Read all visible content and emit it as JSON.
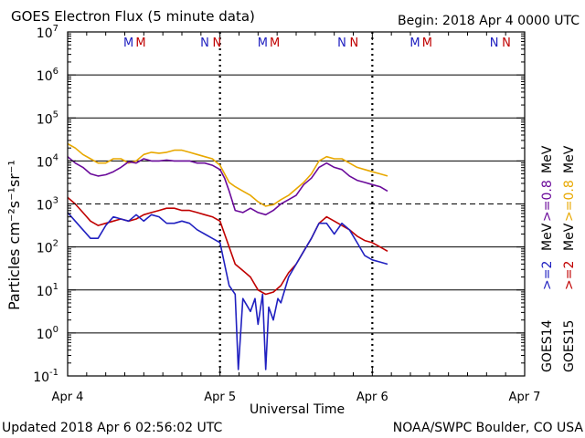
{
  "header": {
    "title": "GOES Electron Flux (5 minute data)",
    "begin": "Begin: 2018 Apr 4 0000 UTC"
  },
  "footer": {
    "updated": "Updated 2018 Apr  6 02:56:02 UTC",
    "credit": "NOAA/SWPC Boulder, CO USA"
  },
  "chart_data": {
    "type": "line",
    "title": "GOES Electron Flux (5 minute data)",
    "xlabel": "Universal Time",
    "ylabel": "Particles cm⁻²s⁻¹sr⁻¹",
    "x_unit": "days since 2018 Apr 4 0000 UTC",
    "xlim": [
      0,
      3
    ],
    "x_ticks": [
      {
        "value": 0,
        "label": "Apr 4"
      },
      {
        "value": 1,
        "label": "Apr 5"
      },
      {
        "value": 2,
        "label": "Apr 6"
      },
      {
        "value": 3,
        "label": "Apr 7"
      }
    ],
    "y_scale": "log",
    "ylim_exp": [
      -1,
      7
    ],
    "y_ticks": [
      {
        "exp": 7,
        "base": "10",
        "sup": "7"
      },
      {
        "exp": 6,
        "base": "10",
        "sup": "6"
      },
      {
        "exp": 5,
        "base": "10",
        "sup": "5"
      },
      {
        "exp": 4,
        "base": "10",
        "sup": "4"
      },
      {
        "exp": 3,
        "base": "10",
        "sup": "3"
      },
      {
        "exp": 2,
        "base": "10",
        "sup": "2"
      },
      {
        "exp": 1,
        "base": "10",
        "sup": "1"
      },
      {
        "exp": 0,
        "base": "10",
        "sup": "0"
      },
      {
        "exp": -1,
        "base": "10",
        "sup": "-1"
      }
    ],
    "threshold_exp": 3,
    "midnight_markers": [
      1,
      2
    ],
    "local_time_markers": [
      {
        "day": 0,
        "label": "M",
        "color": "#2020c0",
        "offset": 0.4
      },
      {
        "day": 0,
        "label": "M",
        "color": "#c00000",
        "offset": 0.48
      },
      {
        "day": 0,
        "label": "N",
        "color": "#2020c0",
        "offset": 0.9
      },
      {
        "day": 0,
        "label": "N",
        "color": "#c00000",
        "offset": 0.98
      },
      {
        "day": 1,
        "label": "M",
        "color": "#2020c0",
        "offset": 0.28
      },
      {
        "day": 1,
        "label": "M",
        "color": "#c00000",
        "offset": 0.36
      },
      {
        "day": 1,
        "label": "N",
        "color": "#2020c0",
        "offset": 0.8
      },
      {
        "day": 1,
        "label": "N",
        "color": "#c00000",
        "offset": 0.88
      },
      {
        "day": 2,
        "label": "M",
        "color": "#2020c0",
        "offset": 0.28
      },
      {
        "day": 2,
        "label": "M",
        "color": "#c00000",
        "offset": 0.36
      },
      {
        "day": 2,
        "label": "N",
        "color": "#2020c0",
        "offset": 0.8
      },
      {
        "day": 2,
        "label": "N",
        "color": "#c00000",
        "offset": 0.88
      }
    ],
    "right_labels": {
      "goes14": "GOES14",
      "goes15": "GOES15",
      "ge2_14": ">=2",
      "ge2_15": ">=2",
      "ge08_14": ">=0.8",
      "ge08_15": ">=0.8",
      "unit": "MeV",
      "color14_2": "#2020c0",
      "color15_2": "#c00000",
      "color14_08": "#6a0a9a",
      "color15_08": "#e8a800"
    },
    "series": [
      {
        "name": "GOES15 >=0.8 MeV",
        "color": "#e8a800",
        "points": [
          [
            0,
            4.4
          ],
          [
            0.05,
            4.3
          ],
          [
            0.1,
            4.15
          ],
          [
            0.15,
            4.05
          ],
          [
            0.2,
            3.95
          ],
          [
            0.25,
            3.95
          ],
          [
            0.3,
            4.05
          ],
          [
            0.35,
            4.05
          ],
          [
            0.4,
            3.95
          ],
          [
            0.45,
            4.0
          ],
          [
            0.5,
            4.15
          ],
          [
            0.55,
            4.2
          ],
          [
            0.6,
            4.18
          ],
          [
            0.65,
            4.2
          ],
          [
            0.7,
            4.25
          ],
          [
            0.75,
            4.25
          ],
          [
            0.8,
            4.2
          ],
          [
            0.85,
            4.15
          ],
          [
            0.9,
            4.1
          ],
          [
            0.95,
            4.05
          ],
          [
            1.0,
            3.9
          ],
          [
            1.03,
            3.7
          ],
          [
            1.06,
            3.5
          ],
          [
            1.1,
            3.4
          ],
          [
            1.15,
            3.3
          ],
          [
            1.2,
            3.2
          ],
          [
            1.25,
            3.05
          ],
          [
            1.3,
            2.95
          ],
          [
            1.35,
            2.98
          ],
          [
            1.4,
            3.1
          ],
          [
            1.45,
            3.2
          ],
          [
            1.5,
            3.35
          ],
          [
            1.55,
            3.5
          ],
          [
            1.6,
            3.7
          ],
          [
            1.65,
            4.0
          ],
          [
            1.7,
            4.1
          ],
          [
            1.75,
            4.05
          ],
          [
            1.8,
            4.05
          ],
          [
            1.85,
            3.95
          ],
          [
            1.9,
            3.85
          ],
          [
            1.95,
            3.8
          ],
          [
            2.0,
            3.75
          ],
          [
            2.05,
            3.7
          ],
          [
            2.1,
            3.65
          ]
        ]
      },
      {
        "name": "GOES14 >=0.8 MeV",
        "color": "#6a0a9a",
        "points": [
          [
            0,
            4.1
          ],
          [
            0.05,
            3.95
          ],
          [
            0.1,
            3.85
          ],
          [
            0.15,
            3.7
          ],
          [
            0.2,
            3.65
          ],
          [
            0.25,
            3.68
          ],
          [
            0.3,
            3.75
          ],
          [
            0.35,
            3.85
          ],
          [
            0.4,
            3.98
          ],
          [
            0.45,
            3.95
          ],
          [
            0.5,
            4.05
          ],
          [
            0.55,
            4.0
          ],
          [
            0.6,
            4.0
          ],
          [
            0.65,
            4.02
          ],
          [
            0.7,
            4.0
          ],
          [
            0.75,
            4.0
          ],
          [
            0.8,
            4.0
          ],
          [
            0.85,
            3.95
          ],
          [
            0.9,
            3.95
          ],
          [
            0.95,
            3.9
          ],
          [
            1.0,
            3.8
          ],
          [
            1.03,
            3.6
          ],
          [
            1.06,
            3.3
          ],
          [
            1.1,
            2.85
          ],
          [
            1.15,
            2.8
          ],
          [
            1.2,
            2.9
          ],
          [
            1.25,
            2.8
          ],
          [
            1.3,
            2.75
          ],
          [
            1.35,
            2.85
          ],
          [
            1.4,
            3.0
          ],
          [
            1.45,
            3.1
          ],
          [
            1.5,
            3.2
          ],
          [
            1.55,
            3.45
          ],
          [
            1.6,
            3.6
          ],
          [
            1.65,
            3.85
          ],
          [
            1.7,
            3.95
          ],
          [
            1.75,
            3.85
          ],
          [
            1.8,
            3.8
          ],
          [
            1.85,
            3.65
          ],
          [
            1.9,
            3.55
          ],
          [
            1.95,
            3.5
          ],
          [
            2.0,
            3.45
          ],
          [
            2.05,
            3.4
          ],
          [
            2.1,
            3.3
          ]
        ]
      },
      {
        "name": "GOES15 >=2 MeV",
        "color": "#c00000",
        "points": [
          [
            0,
            3.15
          ],
          [
            0.05,
            3.0
          ],
          [
            0.1,
            2.8
          ],
          [
            0.15,
            2.6
          ],
          [
            0.2,
            2.5
          ],
          [
            0.25,
            2.55
          ],
          [
            0.3,
            2.6
          ],
          [
            0.35,
            2.65
          ],
          [
            0.4,
            2.6
          ],
          [
            0.45,
            2.65
          ],
          [
            0.5,
            2.75
          ],
          [
            0.55,
            2.8
          ],
          [
            0.6,
            2.85
          ],
          [
            0.65,
            2.9
          ],
          [
            0.7,
            2.9
          ],
          [
            0.75,
            2.85
          ],
          [
            0.8,
            2.85
          ],
          [
            0.85,
            2.8
          ],
          [
            0.9,
            2.75
          ],
          [
            0.95,
            2.7
          ],
          [
            1.0,
            2.6
          ],
          [
            1.03,
            2.3
          ],
          [
            1.06,
            2.0
          ],
          [
            1.1,
            1.6
          ],
          [
            1.15,
            1.45
          ],
          [
            1.2,
            1.3
          ],
          [
            1.25,
            1.0
          ],
          [
            1.3,
            0.9
          ],
          [
            1.35,
            0.95
          ],
          [
            1.4,
            1.1
          ],
          [
            1.45,
            1.4
          ],
          [
            1.5,
            1.6
          ],
          [
            1.55,
            1.9
          ],
          [
            1.6,
            2.2
          ],
          [
            1.65,
            2.55
          ],
          [
            1.7,
            2.7
          ],
          [
            1.75,
            2.6
          ],
          [
            1.8,
            2.5
          ],
          [
            1.85,
            2.4
          ],
          [
            1.9,
            2.25
          ],
          [
            1.95,
            2.15
          ],
          [
            2.0,
            2.1
          ],
          [
            2.05,
            2.0
          ],
          [
            2.1,
            1.9
          ]
        ]
      },
      {
        "name": "GOES14 >=2 MeV",
        "color": "#2020c0",
        "points": [
          [
            0,
            2.8
          ],
          [
            0.05,
            2.6
          ],
          [
            0.1,
            2.4
          ],
          [
            0.15,
            2.2
          ],
          [
            0.2,
            2.2
          ],
          [
            0.25,
            2.5
          ],
          [
            0.3,
            2.7
          ],
          [
            0.35,
            2.65
          ],
          [
            0.4,
            2.6
          ],
          [
            0.45,
            2.75
          ],
          [
            0.5,
            2.6
          ],
          [
            0.55,
            2.75
          ],
          [
            0.6,
            2.7
          ],
          [
            0.65,
            2.55
          ],
          [
            0.7,
            2.55
          ],
          [
            0.75,
            2.6
          ],
          [
            0.8,
            2.55
          ],
          [
            0.85,
            2.4
          ],
          [
            0.9,
            2.3
          ],
          [
            0.95,
            2.2
          ],
          [
            1.0,
            2.1
          ],
          [
            1.03,
            1.6
          ],
          [
            1.06,
            1.1
          ],
          [
            1.1,
            0.9
          ],
          [
            1.12,
            -0.85
          ],
          [
            1.15,
            0.8
          ],
          [
            1.2,
            0.5
          ],
          [
            1.23,
            0.8
          ],
          [
            1.25,
            0.2
          ],
          [
            1.28,
            0.9
          ],
          [
            1.3,
            -0.85
          ],
          [
            1.32,
            0.6
          ],
          [
            1.35,
            0.3
          ],
          [
            1.38,
            0.8
          ],
          [
            1.4,
            0.7
          ],
          [
            1.45,
            1.3
          ],
          [
            1.5,
            1.6
          ],
          [
            1.55,
            1.9
          ],
          [
            1.6,
            2.2
          ],
          [
            1.65,
            2.55
          ],
          [
            1.7,
            2.55
          ],
          [
            1.75,
            2.3
          ],
          [
            1.8,
            2.55
          ],
          [
            1.85,
            2.4
          ],
          [
            1.9,
            2.1
          ],
          [
            1.95,
            1.8
          ],
          [
            2.0,
            1.7
          ],
          [
            2.05,
            1.65
          ],
          [
            2.1,
            1.6
          ]
        ]
      }
    ]
  }
}
